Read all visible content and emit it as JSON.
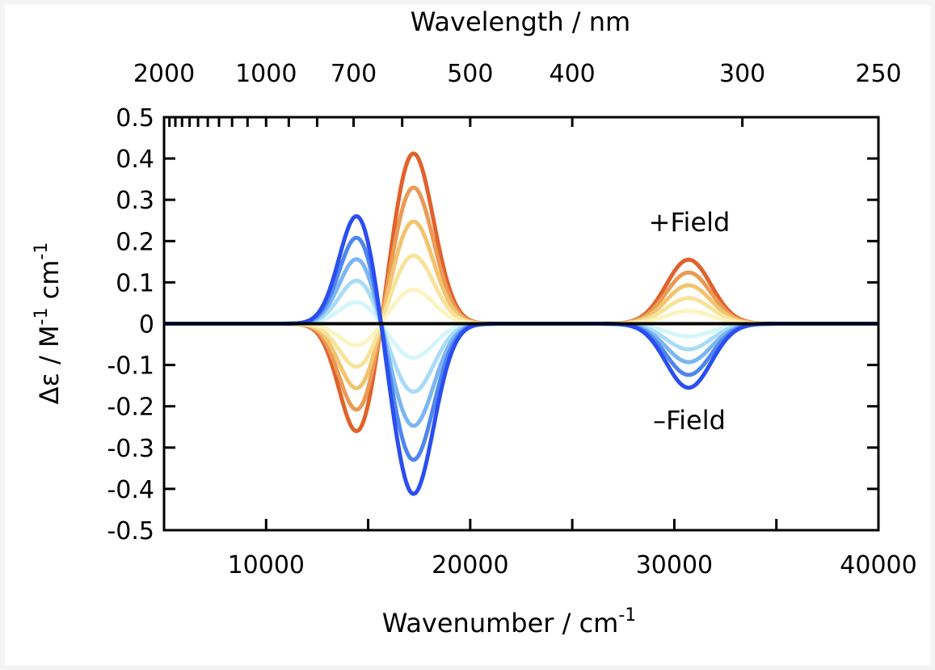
{
  "chart_data": {
    "type": "line",
    "title": "",
    "xlabel": "Wavenumber / cm",
    "xlabel_sup": "-1",
    "ylabel_parts": [
      "Δε / M",
      "-1",
      " cm",
      "-1"
    ],
    "x2label": "Wavelength / nm",
    "xlim": [
      5000,
      40000
    ],
    "ylim": [
      -0.5,
      0.5
    ],
    "xticks": [
      10000,
      20000,
      30000,
      40000
    ],
    "yticks": [
      "0.5",
      "0.4",
      "0.3",
      "0.2",
      "0.1",
      "0",
      "-0.1",
      "-0.2",
      "-0.3",
      "-0.4",
      "-0.5"
    ],
    "x2ticks_labeled": [
      "2000",
      "1000",
      "700",
      "500",
      "400",
      "300",
      "250"
    ],
    "x2ticks_minor_nm": [
      1900,
      1800,
      1700,
      1600,
      1500,
      1400,
      1300,
      1200,
      1100,
      900,
      800,
      600
    ],
    "grid": false,
    "bands": [
      {
        "center_cm": 14500,
        "sigma_cm": 900,
        "amplitude_plus_field": -0.27
      },
      {
        "center_cm": 17200,
        "sigma_cm": 1000,
        "amplitude_plus_field": 0.415
      },
      {
        "center_cm": 30700,
        "sigma_cm": 1100,
        "amplitude_plus_field": 0.155
      }
    ],
    "series": [
      {
        "name": "+Field 1.0",
        "scale": 1.0,
        "color": "#e0622b"
      },
      {
        "name": "+Field 0.8",
        "scale": 0.8,
        "color": "#eb9a55"
      },
      {
        "name": "+Field 0.6",
        "scale": 0.6,
        "color": "#f2c46e"
      },
      {
        "name": "+Field 0.4",
        "scale": 0.4,
        "color": "#f8e39a"
      },
      {
        "name": "+Field 0.2",
        "scale": 0.2,
        "color": "#fcf4c0"
      },
      {
        "name": "-Field 0.2",
        "scale": -0.2,
        "color": "#d3f6fb"
      },
      {
        "name": "-Field 0.4",
        "scale": -0.4,
        "color": "#a8dcf8"
      },
      {
        "name": "-Field 0.6",
        "scale": -0.6,
        "color": "#7cb5f3"
      },
      {
        "name": "-Field 0.8",
        "scale": -0.8,
        "color": "#4f86ee"
      },
      {
        "name": "-Field 1.0",
        "scale": -1.0,
        "color": "#2a4ef0"
      }
    ],
    "annotations": [
      {
        "text": "+Field",
        "color": "#e0622b"
      },
      {
        "text": "–Field",
        "color": "#2a4ef0"
      }
    ]
  }
}
